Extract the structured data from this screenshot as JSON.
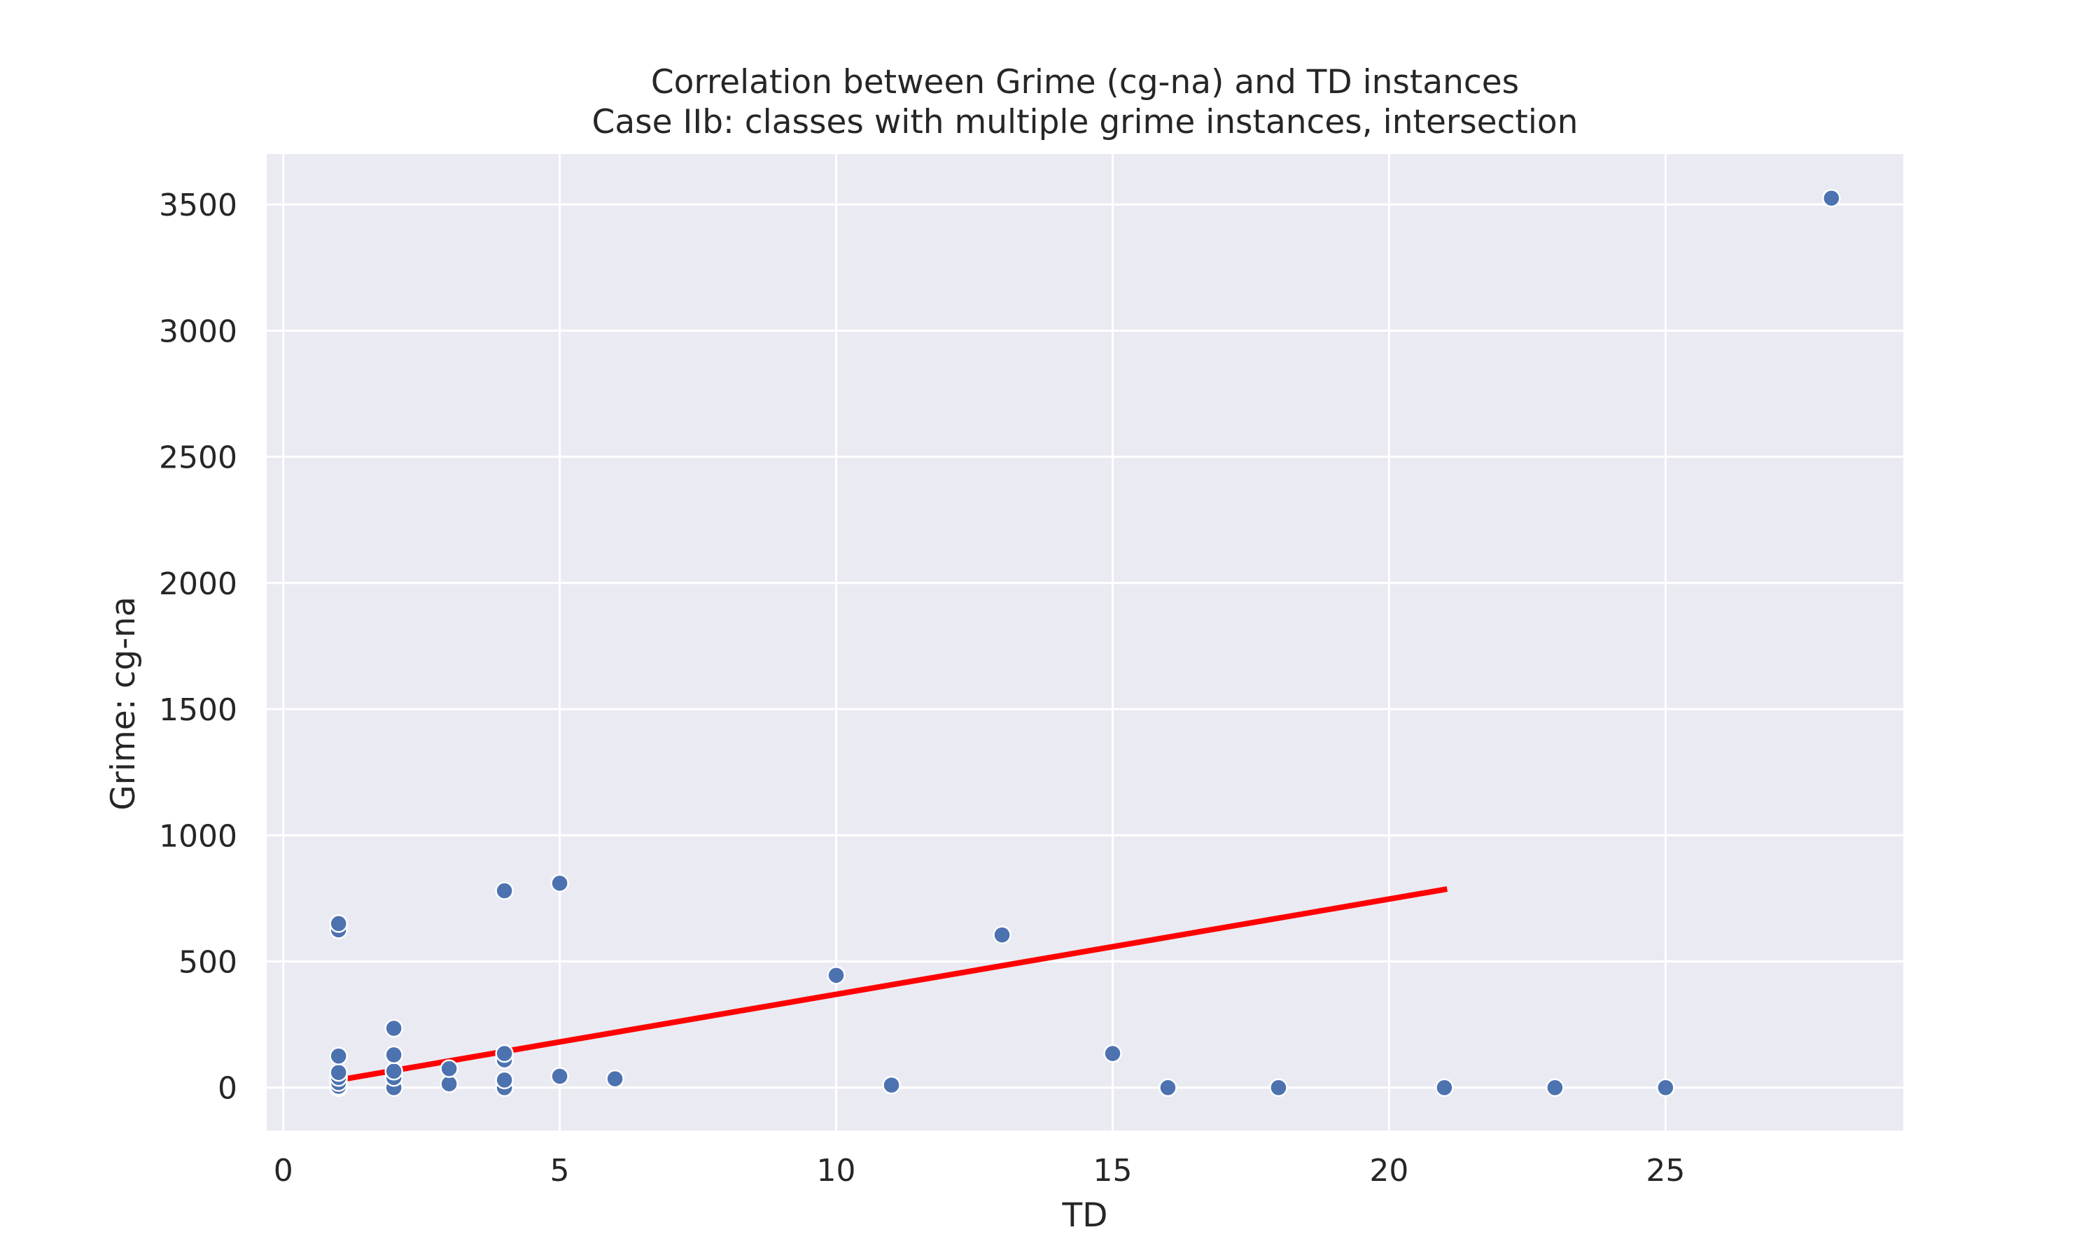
{
  "chart_data": {
    "type": "scatter",
    "title": "Correlation between Grime (cg-na) and TD instances",
    "subtitle": "Case IIb: classes with multiple grime instances, intersection",
    "xlabel": "TD",
    "ylabel": "Grime: cg-na",
    "xlim": [
      -0.3,
      29.3
    ],
    "ylim": [
      -170,
      3700
    ],
    "x_ticks": [
      0,
      5,
      10,
      15,
      20,
      25
    ],
    "y_ticks": [
      0,
      500,
      1000,
      1500,
      2000,
      2500,
      3000,
      3500
    ],
    "grid": true,
    "legend": "none",
    "colors": {
      "background": "#eaeaf2",
      "grid": "#ffffff",
      "points": "#4c72b0",
      "trend": "#ff0000"
    },
    "points": [
      {
        "x": 1,
        "y": 0
      },
      {
        "x": 1,
        "y": 5
      },
      {
        "x": 1,
        "y": 20
      },
      {
        "x": 1,
        "y": 40
      },
      {
        "x": 1,
        "y": 60
      },
      {
        "x": 1,
        "y": 125
      },
      {
        "x": 1,
        "y": 625
      },
      {
        "x": 1,
        "y": 650
      },
      {
        "x": 2,
        "y": 0
      },
      {
        "x": 2,
        "y": 40
      },
      {
        "x": 2,
        "y": 65
      },
      {
        "x": 2,
        "y": 130
      },
      {
        "x": 2,
        "y": 235
      },
      {
        "x": 3,
        "y": 15
      },
      {
        "x": 3,
        "y": 75
      },
      {
        "x": 4,
        "y": 0
      },
      {
        "x": 4,
        "y": 30
      },
      {
        "x": 4,
        "y": 110
      },
      {
        "x": 4,
        "y": 135
      },
      {
        "x": 4,
        "y": 780
      },
      {
        "x": 5,
        "y": 45
      },
      {
        "x": 5,
        "y": 810
      },
      {
        "x": 6,
        "y": 35
      },
      {
        "x": 10,
        "y": 445
      },
      {
        "x": 11,
        "y": 10
      },
      {
        "x": 13,
        "y": 605
      },
      {
        "x": 15,
        "y": 135
      },
      {
        "x": 16,
        "y": 0
      },
      {
        "x": 18,
        "y": 0
      },
      {
        "x": 21,
        "y": 0
      },
      {
        "x": 23,
        "y": 0
      },
      {
        "x": 25,
        "y": 0
      },
      {
        "x": 28,
        "y": 3525
      }
    ],
    "trend_line": [
      {
        "x": 1,
        "y": 30
      },
      {
        "x": 21,
        "y": 785
      }
    ]
  }
}
